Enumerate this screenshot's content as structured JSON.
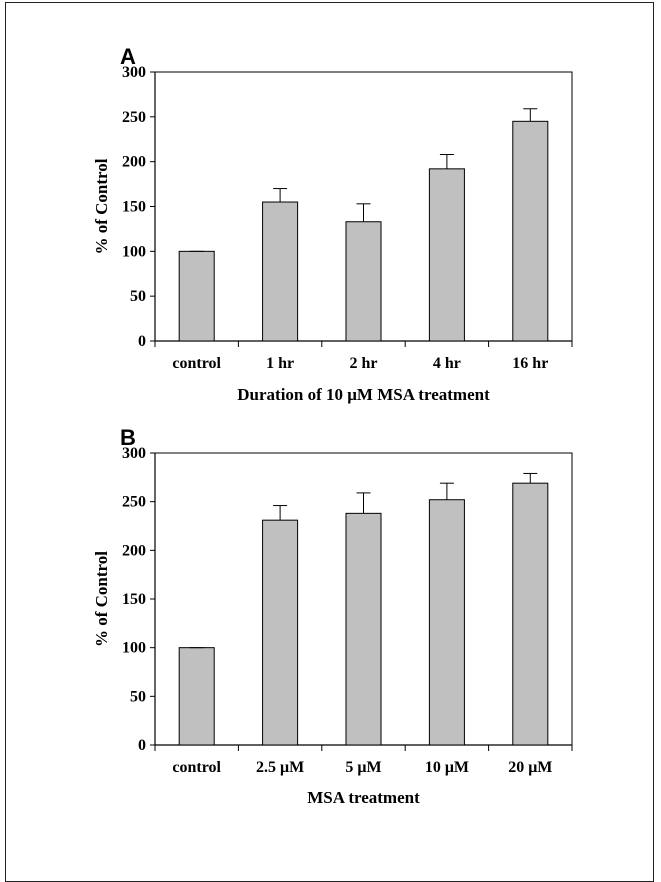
{
  "figure": {
    "panels": [
      "A",
      "B"
    ]
  },
  "chart_data": [
    {
      "type": "bar",
      "panel": "A",
      "categories": [
        "control",
        "1 hr",
        "2 hr",
        "4 hr",
        "16 hr"
      ],
      "values": [
        100,
        155,
        133,
        192,
        245
      ],
      "errors": [
        0,
        15,
        20,
        16,
        14
      ],
      "xlabel": "Duration of 10 μM MSA treatment",
      "ylabel": "% of Control",
      "ylim": [
        0,
        300
      ],
      "yticks": [
        0,
        50,
        100,
        150,
        200,
        250,
        300
      ],
      "bar_color": "#c0c0c0",
      "grid": false
    },
    {
      "type": "bar",
      "panel": "B",
      "categories": [
        "control",
        "2.5 μM",
        "5 μM",
        "10 μM",
        "20 μM"
      ],
      "values": [
        100,
        231,
        238,
        252,
        269
      ],
      "errors": [
        0,
        15,
        21,
        17,
        10
      ],
      "xlabel": "MSA treatment",
      "ylabel": "% of Control",
      "ylim": [
        0,
        300
      ],
      "yticks": [
        0,
        50,
        100,
        150,
        200,
        250,
        300
      ],
      "bar_color": "#c0c0c0",
      "grid": false
    }
  ]
}
